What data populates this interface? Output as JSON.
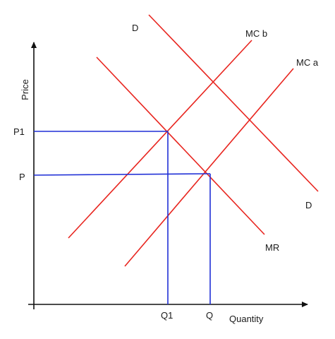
{
  "diagram": {
    "axes": {
      "y_label": "Price",
      "x_label": "Quantity"
    },
    "curves": {
      "demand": {
        "label_top": "D",
        "label_bottom": "D"
      },
      "marginal_revenue": {
        "label": "MR"
      },
      "marginal_cost_b": {
        "label": "MC b"
      },
      "marginal_cost_a": {
        "label": "MC a"
      }
    },
    "price_levels": {
      "p1": "P1",
      "p": "P"
    },
    "quantity_levels": {
      "q1": "Q1",
      "q": "Q"
    },
    "colors": {
      "curves": "#e8251f",
      "guides": "#1f2fd6",
      "axes": "#111111"
    }
  }
}
